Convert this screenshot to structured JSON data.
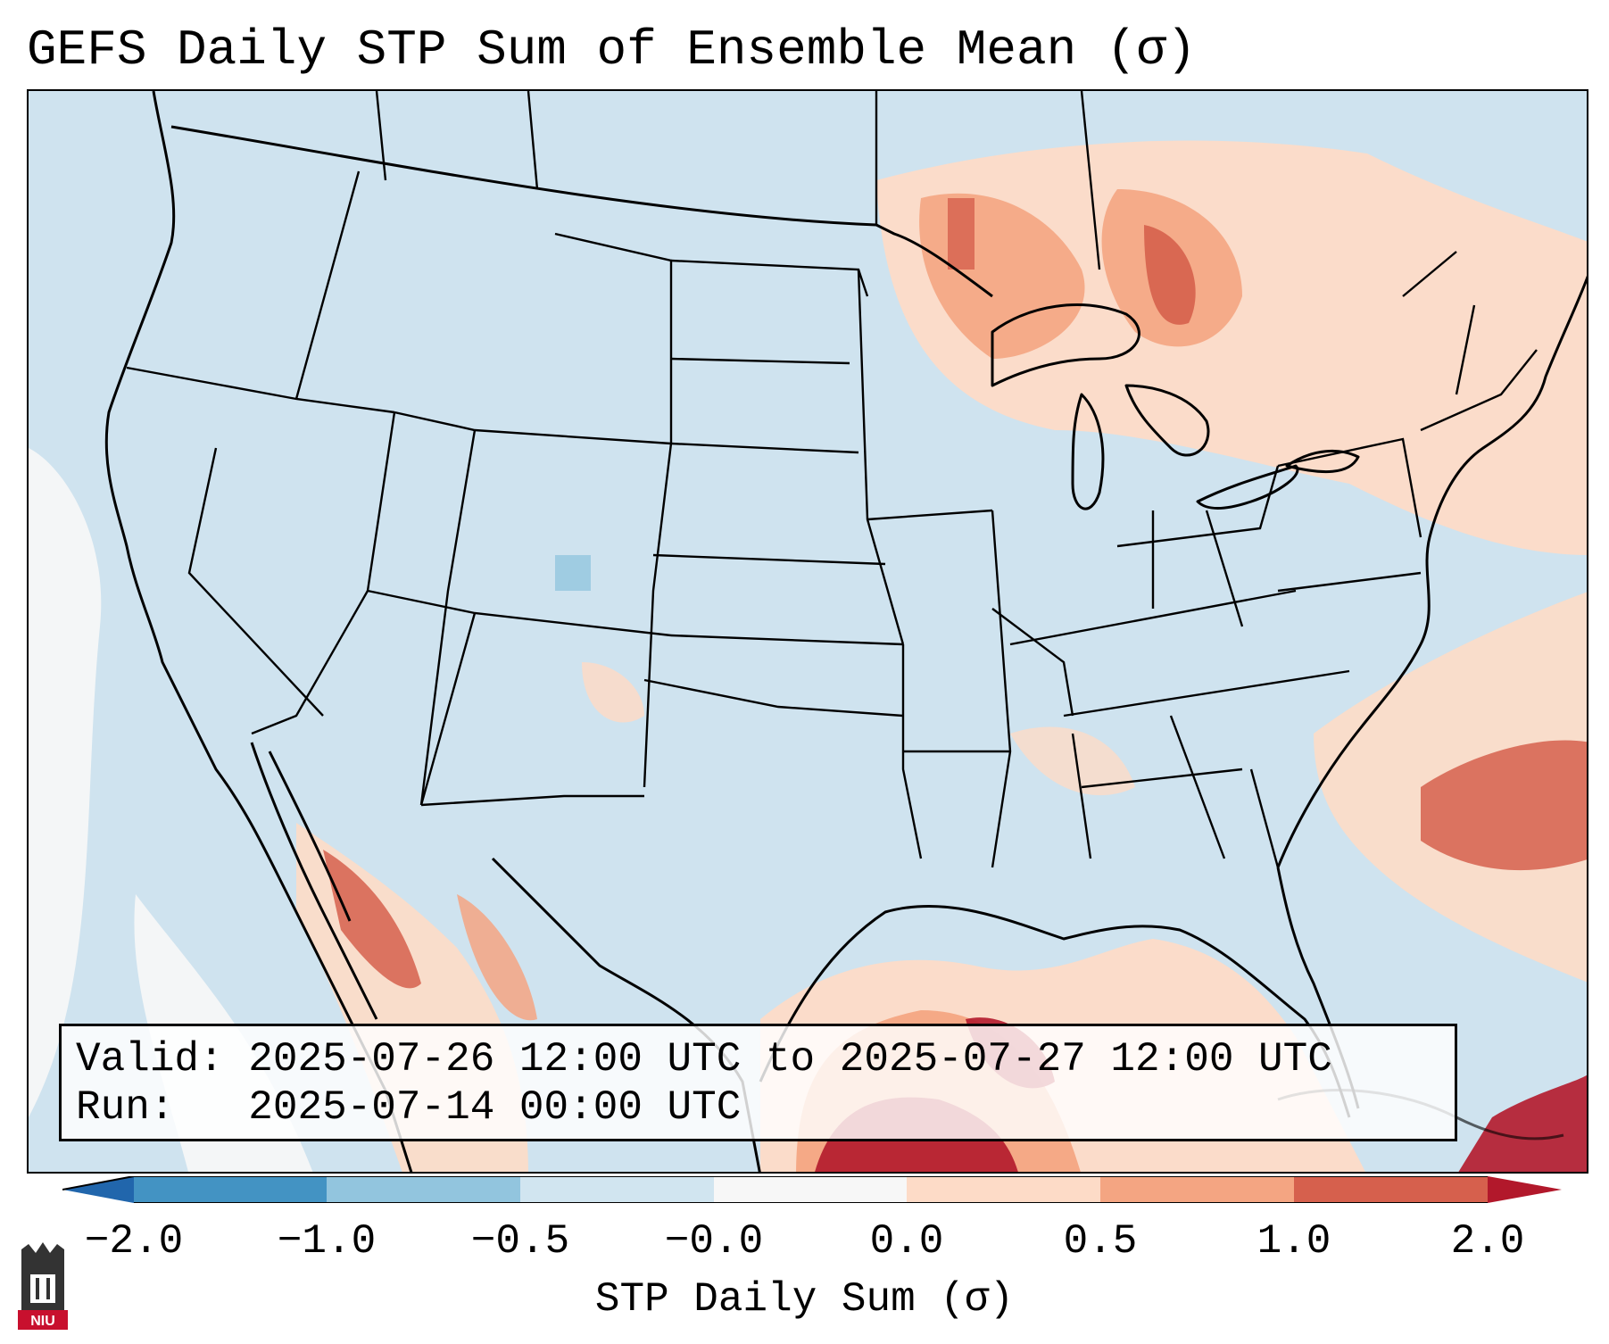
{
  "title": "GEFS Daily STP Sum of Ensemble Mean (σ)",
  "info": {
    "valid_label": "Valid:",
    "valid_value": "2025-07-26 12:00 UTC to 2025-07-27 12:00 UTC",
    "run_label": "Run:",
    "run_value": "2025-07-14 00:00 UTC"
  },
  "colorbar": {
    "label": "STP Daily Sum (σ)",
    "ticks": [
      "−2.0",
      "−1.0",
      "−0.5",
      "−0.0",
      "0.0",
      "0.5",
      "1.0",
      "2.0"
    ],
    "colors": {
      "under": "#2166ac",
      "lt_neg2_to_neg1": "#4393c3",
      "neg1_to_neg05": "#92c5de",
      "neg05_to_0": "#d1e5f0",
      "zero": "#f7f7f7",
      "pos0_to_05": "#fddbc7",
      "pos05_to_1": "#f4a582",
      "pos1_to_2": "#d6604d",
      "over": "#b2182b"
    }
  },
  "logo": {
    "text": "NIU"
  }
}
